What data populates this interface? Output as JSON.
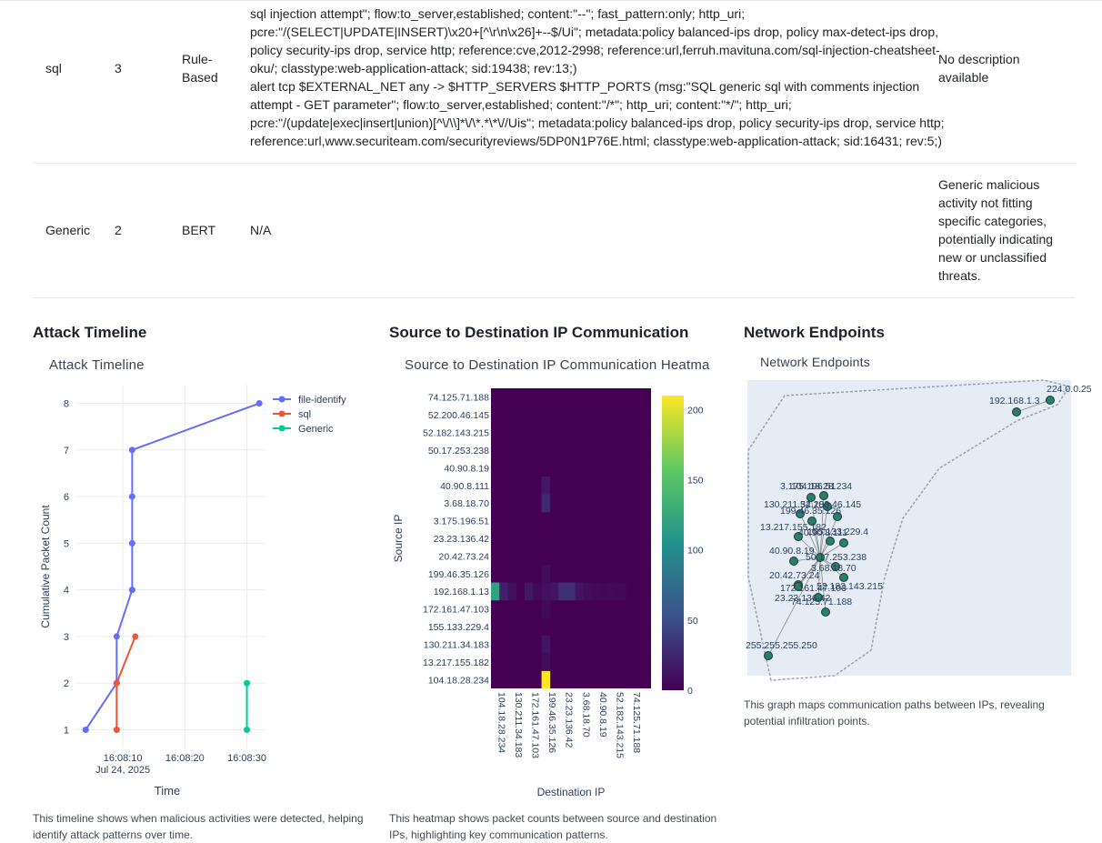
{
  "rules": [
    {
      "type": "sql",
      "count": "3",
      "method_lines": [
        "Rule-",
        "Based"
      ],
      "rule_lines": [
        "sql injection attempt\"; flow:to_server,established; content:\"--\"; fast_pattern:only; http_uri;",
        "pcre:\"/(SELECT|UPDATE|INSERT)\\x20+[^\\r\\n\\x26]+--$/Ui\"; metadata:policy balanced-ips drop, policy max-detect-ips drop,",
        "policy security-ips drop, service http; reference:cve,2012-2998; reference:url,ferruh.mavituna.com/sql-injection-cheatsheet-",
        "oku/; classtype:web-application-attack; sid:19438; rev:13;)",
        "alert tcp $EXTERNAL_NET any -> $HTTP_SERVERS $HTTP_PORTS (msg:\"SQL generic sql with comments injection",
        "attempt - GET parameter\"; flow:to_server,established; content:\"/*\"; http_uri; content:\"*/\"; http_uri;",
        "pcre:\"/(update|exec|insert|union)[^\\/\\\\]*\\/\\*.*\\*\\//Uis\"; metadata:policy balanced-ips drop, policy security-ips drop, service http;",
        "reference:url,www.securiteam.com/securityreviews/5DP0N1P76E.html; classtype:web-application-attack; sid:16431; rev:5;)"
      ],
      "desc_lines": [
        "No description",
        "available"
      ]
    },
    {
      "type": "Generic",
      "count": "2",
      "method_lines": [
        "BERT"
      ],
      "rule_lines": [
        "N/A"
      ],
      "desc_lines": [
        "Generic malicious",
        "activity not fitting",
        "specific categories,",
        "potentially indicating",
        "new or unclassified",
        "threats."
      ]
    }
  ],
  "panels": {
    "timeline": {
      "heading": "Attack Timeline",
      "plot_title": "Attack Timeline",
      "caption_lines": [
        "This timeline shows when malicious activities were detected, helping",
        "identify attack patterns over time."
      ]
    },
    "heatmap": {
      "heading": "Source to Destination IP Communication",
      "plot_title": "Source to Destination IP Communication Heatma",
      "caption_lines": [
        "This heatmap shows packet counts between source and destination",
        "IPs, highlighting key communication patterns."
      ]
    },
    "network": {
      "heading": "Network Endpoints",
      "plot_title": "Network Endpoints",
      "caption_lines": [
        "This graph maps communication paths between IPs, revealing",
        "potential infiltration points."
      ]
    }
  },
  "chart_data": [
    {
      "type": "line",
      "title": "Attack Timeline",
      "xlabel": "Time",
      "ylabel": "Cumulative Packet Count",
      "x_ticks": [
        "16:08:10",
        "16:08:20",
        "16:08:30"
      ],
      "x_tick_date": "Jul 24, 2025",
      "y_ticks": [
        "1",
        "2",
        "3",
        "4",
        "5",
        "6",
        "7",
        "8"
      ],
      "ylim": [
        0.6,
        8.4
      ],
      "xlim": [
        "16:08:02.5",
        "16:08:33"
      ],
      "legend_position": "top-right",
      "series": [
        {
          "name": "file-identify",
          "color": "#636efa",
          "points": [
            [
              "16:08:04",
              1
            ],
            [
              "16:08:09",
              2
            ],
            [
              "16:08:09",
              3
            ],
            [
              "16:08:11.5",
              4
            ],
            [
              "16:08:11.5",
              5
            ],
            [
              "16:08:11.5",
              6
            ],
            [
              "16:08:11.5",
              7
            ],
            [
              "16:08:32",
              8
            ]
          ]
        },
        {
          "name": "sql",
          "color": "#ef553b",
          "points": [
            [
              "16:08:09",
              1
            ],
            [
              "16:08:09",
              2
            ],
            [
              "16:08:12",
              3
            ]
          ]
        },
        {
          "name": "Generic",
          "color": "#00cc96",
          "points": [
            [
              "16:08:30",
              1
            ],
            [
              "16:08:30",
              2
            ]
          ]
        }
      ]
    },
    {
      "type": "heatmap",
      "title": "Source to Destination IP Communication Heatma",
      "xlabel": "Destination IP",
      "ylabel": "Source IP",
      "y_categories": [
        "74.125.71.188",
        "52.200.46.145",
        "52.182.143.215",
        "50.17.253.238",
        "40.90.8.19",
        "40.90.8.111",
        "3.68.18.70",
        "3.175.196.51",
        "23.23.136.42",
        "20.42.73.24",
        "199.46.35.126",
        "192.168.1.13",
        "172.161.47.103",
        "155.133.229.4",
        "130.211.34.183",
        "13.217.155.182",
        "104.18.28.234"
      ],
      "x_tick_labels": [
        "104.18.28.234",
        "130.211.34.183",
        "172.161.47.103",
        "199.46.35.126",
        "23.23.136.42",
        "3.68.18.70",
        "40.90.8.19",
        "52.182.143.215",
        "74.125.71.188"
      ],
      "colorbar_ticks": [
        "0",
        "50",
        "100",
        "150",
        "200"
      ],
      "zlim": [
        0,
        210
      ],
      "colorscale": "viridis",
      "cells": [
        {
          "src": "192.168.1.13",
          "dst_index": 0,
          "value": 120
        },
        {
          "src": "192.168.1.13",
          "dst_index": 1,
          "value": 20
        },
        {
          "src": "192.168.1.13",
          "dst_index": 2,
          "value": 10
        },
        {
          "src": "192.168.1.13",
          "dst_index": 4,
          "value": 15
        },
        {
          "src": "192.168.1.13",
          "dst_index": 5,
          "value": 5
        },
        {
          "src": "192.168.1.13",
          "dst_index": 6,
          "value": 10
        },
        {
          "src": "192.168.1.13",
          "dst_index": 7,
          "value": 12
        },
        {
          "src": "192.168.1.13",
          "dst_index": 8,
          "value": 30
        },
        {
          "src": "192.168.1.13",
          "dst_index": 9,
          "value": 30
        },
        {
          "src": "192.168.1.13",
          "dst_index": 10,
          "value": 12
        },
        {
          "src": "192.168.1.13",
          "dst_index": 11,
          "value": 8
        },
        {
          "src": "192.168.1.13",
          "dst_index": 12,
          "value": 6
        },
        {
          "src": "192.168.1.13",
          "dst_index": 13,
          "value": 5
        },
        {
          "src": "192.168.1.13",
          "dst_index": 14,
          "value": 6
        },
        {
          "src": "192.168.1.13",
          "dst_index": 15,
          "value": 5
        },
        {
          "src": "104.18.28.234",
          "dst_index": 6,
          "value": 210
        },
        {
          "src": "40.90.8.111",
          "dst_index": 6,
          "value": 14
        },
        {
          "src": "3.68.18.70",
          "dst_index": 6,
          "value": 25
        },
        {
          "src": "199.46.35.126",
          "dst_index": 6,
          "value": 8
        },
        {
          "src": "130.211.34.183",
          "dst_index": 6,
          "value": 12
        },
        {
          "src": "13.217.155.182",
          "dst_index": 6,
          "value": 8
        },
        {
          "src": "172.161.47.103",
          "dst_index": 6,
          "value": 6
        }
      ]
    },
    {
      "type": "network",
      "title": "Network Endpoints",
      "hub": "192.168.1.13",
      "node_color": "#2a7d6b",
      "labels_shown": [
        "224.0.0.25",
        "192.168.1.3",
        "3.175.196.51",
        "104.18.28.234",
        "130.211.34.183",
        "52.200.46.145",
        "199.46.35.126",
        "13.217.155.182",
        "155.133.229.4",
        "40.90.8.111",
        "40.90.8.19",
        "50.17.253.238",
        "3.68.18.70",
        "20.42.73.24",
        "52.182.143.215",
        "172.161.47.103",
        "23.23.136.42",
        "74.125.71.188",
        "255.255.255.250"
      ]
    }
  ]
}
